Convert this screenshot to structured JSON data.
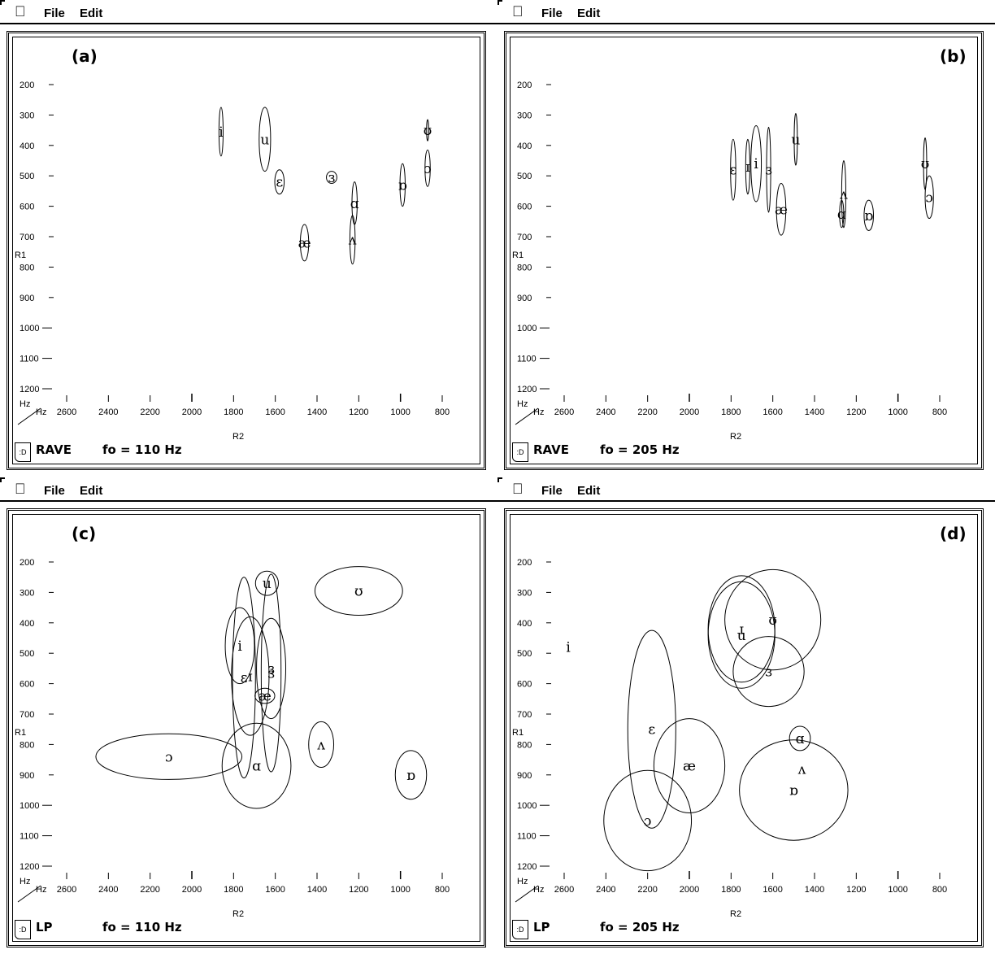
{
  "menu": {
    "file": "File",
    "edit": "Edit"
  },
  "axes": {
    "y_label": "R1",
    "x_label": "R2",
    "x_unit": "Hz",
    "y_unit": "Hz",
    "y_ticks": [
      200,
      300,
      400,
      500,
      600,
      700,
      800,
      900,
      1000,
      1100,
      1200
    ],
    "x_ticks": [
      2600,
      2400,
      2200,
      2000,
      1800,
      1600,
      1400,
      1200,
      1000,
      800
    ]
  },
  "panels": [
    {
      "label": "(a)",
      "method": "RAVE",
      "fo_text": "fo = 110 Hz",
      "chart_data": {
        "type": "scatter",
        "xlim": [
          2600,
          800
        ],
        "ylim": [
          1200,
          200
        ],
        "vowels": [
          {
            "symbol": "i",
            "r2": 1860,
            "r1": 355,
            "w2": 20,
            "h1": 160
          },
          {
            "symbol": "u",
            "r2": 1650,
            "r1": 380,
            "w2": 55,
            "h1": 210
          },
          {
            "symbol": "ɛ",
            "r2": 1580,
            "r1": 520,
            "w2": 45,
            "h1": 80
          },
          {
            "symbol": "ɜ",
            "r2": 1330,
            "r1": 505,
            "w2": 50,
            "h1": 40
          },
          {
            "symbol": "ɑ",
            "r2": 1220,
            "r1": 590,
            "w2": 25,
            "h1": 140
          },
          {
            "symbol": "æ",
            "r2": 1460,
            "r1": 720,
            "w2": 40,
            "h1": 120
          },
          {
            "symbol": "ʌ",
            "r2": 1230,
            "r1": 710,
            "w2": 25,
            "h1": 160
          },
          {
            "symbol": "ɒ",
            "r2": 990,
            "r1": 530,
            "w2": 25,
            "h1": 140
          },
          {
            "symbol": "ɔ",
            "r2": 870,
            "r1": 475,
            "w2": 25,
            "h1": 120
          },
          {
            "symbol": "ʊ",
            "r2": 870,
            "r1": 350,
            "w2": 10,
            "h1": 70
          }
        ]
      }
    },
    {
      "label": "(b)",
      "method": "RAVE",
      "fo_text": "fo = 205 Hz",
      "chart_data": {
        "type": "scatter",
        "xlim": [
          2600,
          800
        ],
        "ylim": [
          1200,
          200
        ],
        "vowels": [
          {
            "symbol": "ɛ",
            "r2": 1790,
            "r1": 480,
            "w2": 25,
            "h1": 200
          },
          {
            "symbol": "ɪ",
            "r2": 1720,
            "r1": 470,
            "w2": 20,
            "h1": 180
          },
          {
            "symbol": "i",
            "r2": 1680,
            "r1": 460,
            "w2": 50,
            "h1": 250
          },
          {
            "symbol": "ɜ",
            "r2": 1620,
            "r1": 480,
            "w2": 20,
            "h1": 280
          },
          {
            "symbol": "u",
            "r2": 1490,
            "r1": 380,
            "w2": 15,
            "h1": 170
          },
          {
            "symbol": "æ",
            "r2": 1560,
            "r1": 610,
            "w2": 45,
            "h1": 170
          },
          {
            "symbol": "ʌ",
            "r2": 1260,
            "r1": 560,
            "w2": 20,
            "h1": 220
          },
          {
            "symbol": "ɑ",
            "r2": 1270,
            "r1": 625,
            "w2": 20,
            "h1": 90
          },
          {
            "symbol": "ɒ",
            "r2": 1140,
            "r1": 630,
            "w2": 45,
            "h1": 100
          },
          {
            "symbol": "ʊ",
            "r2": 870,
            "r1": 460,
            "w2": 15,
            "h1": 170
          },
          {
            "symbol": "ɔ",
            "r2": 850,
            "r1": 570,
            "w2": 40,
            "h1": 140
          }
        ]
      }
    },
    {
      "label": "(c)",
      "method": "LP",
      "fo_text": "fo = 110 Hz",
      "chart_data": {
        "type": "scatter",
        "xlim": [
          2600,
          800
        ],
        "ylim": [
          1200,
          200
        ],
        "vowels": [
          {
            "symbol": "u",
            "r2": 1640,
            "r1": 270,
            "w2": 110,
            "h1": 80
          },
          {
            "symbol": "ʊ",
            "r2": 1200,
            "r1": 295,
            "w2": 420,
            "h1": 160
          },
          {
            "symbol": "i",
            "r2": 1770,
            "r1": 475,
            "w2": 140,
            "h1": 250
          },
          {
            "symbol": "ɪ",
            "r2": 1720,
            "r1": 575,
            "w2": 180,
            "h1": 390
          },
          {
            "symbol": "ɜ",
            "r2": 1620,
            "r1": 550,
            "w2": 140,
            "h1": 330
          },
          {
            "symbol": "ɛ",
            "r2": 1750,
            "r1": 580,
            "w2": 110,
            "h1": 660
          },
          {
            "symbol": "ɜ",
            "r2": 1620,
            "r1": 565,
            "w2": 95,
            "h1": 650
          },
          {
            "symbol": "æ",
            "r2": 1650,
            "r1": 640,
            "w2": 95,
            "h1": 50
          },
          {
            "symbol": "ʌ",
            "r2": 1380,
            "r1": 800,
            "w2": 120,
            "h1": 150
          },
          {
            "symbol": "ɔ",
            "r2": 2110,
            "r1": 840,
            "w2": 700,
            "h1": 150
          },
          {
            "symbol": "ɑ",
            "r2": 1690,
            "r1": 870,
            "w2": 330,
            "h1": 280
          },
          {
            "symbol": "ɒ",
            "r2": 950,
            "r1": 900,
            "w2": 150,
            "h1": 160
          }
        ]
      }
    },
    {
      "label": "(d)",
      "method": "LP",
      "fo_text": "fo = 205 Hz",
      "chart_data": {
        "type": "scatter",
        "xlim": [
          2600,
          800
        ],
        "ylim": [
          1200,
          200
        ],
        "vowels": [
          {
            "symbol": "i",
            "r2": 2580,
            "r1": 480,
            "w2": 0,
            "h1": 0
          },
          {
            "symbol": "ɪ",
            "r2": 1750,
            "r1": 420,
            "w2": 320,
            "h1": 350
          },
          {
            "symbol": "u",
            "r2": 1750,
            "r1": 440,
            "w2": 320,
            "h1": 350
          },
          {
            "symbol": "ʊ",
            "r2": 1600,
            "r1": 390,
            "w2": 460,
            "h1": 330
          },
          {
            "symbol": "ɜ",
            "r2": 1620,
            "r1": 560,
            "w2": 340,
            "h1": 230
          },
          {
            "symbol": "ɛ",
            "r2": 2180,
            "r1": 750,
            "w2": 230,
            "h1": 650
          },
          {
            "symbol": "æ",
            "r2": 2000,
            "r1": 870,
            "w2": 340,
            "h1": 310
          },
          {
            "symbol": "ɑ",
            "r2": 1470,
            "r1": 780,
            "w2": 100,
            "h1": 80
          },
          {
            "symbol": "ʌ",
            "r2": 1460,
            "r1": 880,
            "w2": 0,
            "h1": 0
          },
          {
            "symbol": "ɒ",
            "r2": 1500,
            "r1": 950,
            "w2": 520,
            "h1": 330
          },
          {
            "symbol": "ɔ",
            "r2": 2200,
            "r1": 1050,
            "w2": 420,
            "h1": 330
          }
        ]
      }
    }
  ]
}
